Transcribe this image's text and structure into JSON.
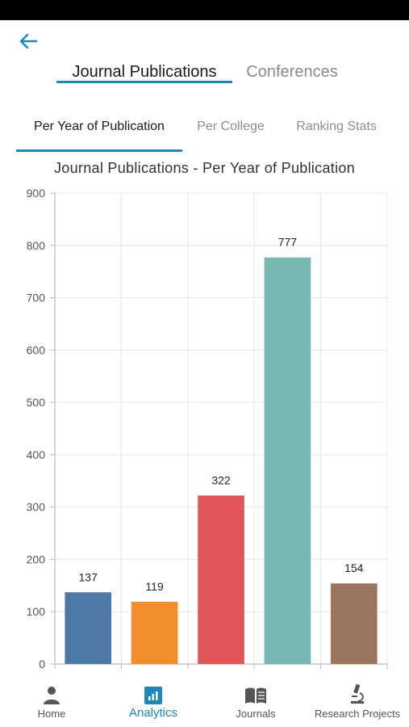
{
  "header": {
    "back_icon": "arrow-left-icon",
    "tabs": [
      {
        "label": "Journal Publications",
        "active": true
      },
      {
        "label": "Conferences",
        "active": false
      }
    ]
  },
  "sub_tabs": [
    {
      "label": "Per Year of Publication",
      "active": true
    },
    {
      "label": "Per College",
      "active": false
    },
    {
      "label": "Ranking Stats",
      "active": false
    }
  ],
  "chart_data": {
    "type": "bar",
    "title": "Journal Publications - Per Year of Publication",
    "categories": [
      "",
      "",
      "",
      "",
      ""
    ],
    "values": [
      137,
      119,
      322,
      777,
      154
    ],
    "colors": [
      "#4e79a7",
      "#f28e2b",
      "#e15759",
      "#76b7b2",
      "#9c755f"
    ],
    "ylim": [
      0,
      900
    ],
    "yticks": [
      0,
      100,
      200,
      300,
      400,
      500,
      600,
      700,
      800,
      900
    ],
    "grid": true,
    "data_labels": true
  },
  "bottom_nav": [
    {
      "label": "Home",
      "icon": "person-icon",
      "active": false
    },
    {
      "label": "Analytics",
      "icon": "bar-chart-icon",
      "active": true
    },
    {
      "label": "Journals",
      "icon": "book-icon",
      "active": false
    },
    {
      "label": "Research Projects",
      "icon": "microscope-icon",
      "active": false
    }
  ],
  "colors": {
    "accent": "#1f87b3",
    "inactive_text": "#8a8a8a"
  }
}
